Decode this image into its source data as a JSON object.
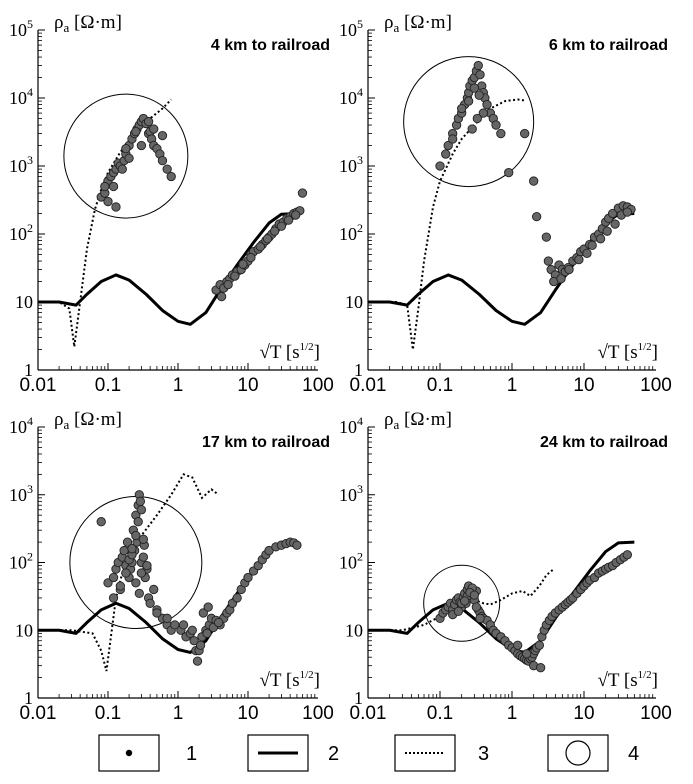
{
  "legend": {
    "items": [
      {
        "label": "1",
        "symbol": "point"
      },
      {
        "label": "2",
        "symbol": "solid-line"
      },
      {
        "label": "3",
        "symbol": "dotted-line"
      },
      {
        "label": "4",
        "symbol": "circle"
      }
    ]
  },
  "chart_data": [
    {
      "type": "scatter",
      "title": "4 km to railroad",
      "ylabel": "ρa [Ω·m]",
      "xlabel": "√T [s1/2]",
      "x_scale": "log",
      "y_scale": "log",
      "xlim": [
        0.01,
        100
      ],
      "ylim": [
        1,
        100000
      ],
      "x_ticks": [
        "0.01",
        "0.1",
        "1",
        "10",
        "100"
      ],
      "y_ticks": [
        {
          "base": "1",
          "exp": ""
        },
        {
          "base": "10",
          "exp": ""
        },
        {
          "base": "10",
          "exp": "2"
        },
        {
          "base": "10",
          "exp": "3"
        },
        {
          "base": "10",
          "exp": "4"
        },
        {
          "base": "10",
          "exp": "5"
        }
      ],
      "model_curve": {
        "x": [
          0.01,
          0.02,
          0.035,
          0.05,
          0.08,
          0.13,
          0.2,
          0.35,
          0.6,
          1.0,
          1.5,
          2.5,
          4,
          7,
          12,
          20,
          30,
          50
        ],
        "y": [
          10,
          10,
          9,
          13,
          20,
          25,
          21,
          13,
          7.5,
          5.2,
          4.7,
          7,
          15,
          35,
          75,
          145,
          195,
          200
        ]
      },
      "railway_curve": {
        "x": [
          0.01,
          0.02,
          0.028,
          0.033,
          0.04,
          0.05,
          0.065,
          0.08,
          0.1,
          0.15,
          0.25,
          0.4,
          0.6,
          0.8
        ],
        "y": [
          10,
          10,
          8,
          2.2,
          10,
          60,
          230,
          450,
          800,
          1600,
          3000,
          5000,
          7000,
          9500
        ]
      },
      "zone": {
        "cx": 0.18,
        "cy": 1400,
        "r_px": 62
      },
      "points": {
        "x": [
          0.08,
          0.09,
          0.1,
          0.11,
          0.12,
          0.12,
          0.13,
          0.14,
          0.15,
          0.16,
          0.17,
          0.18,
          0.2,
          0.22,
          0.24,
          0.26,
          0.28,
          0.3,
          0.32,
          0.35,
          0.38,
          0.4,
          0.42,
          0.45,
          0.5,
          0.55,
          0.6,
          0.7,
          0.8,
          0.1,
          0.13,
          0.2,
          0.3,
          0.45,
          0.6,
          0.09,
          0.18,
          0.25,
          0.38,
          3.5,
          4,
          4.5,
          5,
          5.5,
          6,
          7,
          8,
          9,
          10,
          11,
          12,
          14,
          16,
          18,
          20,
          22,
          25,
          28,
          32,
          36,
          40,
          45,
          50,
          55,
          60,
          4.2,
          5.2,
          6.5,
          8.5,
          11,
          15,
          19,
          24,
          30,
          38,
          48
        ],
        "y": [
          350,
          400,
          600,
          700,
          500,
          800,
          900,
          1100,
          1000,
          900,
          1200,
          1500,
          2000,
          2500,
          3000,
          3500,
          4000,
          4500,
          5000,
          4200,
          3000,
          3200,
          2500,
          2000,
          1800,
          1500,
          1200,
          900,
          700,
          300,
          250,
          1300,
          2000,
          3500,
          2800,
          500,
          1800,
          3200,
          4500,
          15,
          18,
          16,
          20,
          22,
          25,
          28,
          30,
          35,
          40,
          50,
          55,
          60,
          70,
          80,
          90,
          100,
          120,
          140,
          150,
          170,
          180,
          200,
          210,
          220,
          400,
          12,
          18,
          24,
          36,
          45,
          65,
          85,
          110,
          130,
          160,
          190
        ]
      }
    },
    {
      "type": "scatter",
      "title": "6 km to railroad",
      "ylabel": "ρa [Ω·m]",
      "xlabel": "√T [s1/2]",
      "x_scale": "log",
      "y_scale": "log",
      "xlim": [
        0.01,
        100
      ],
      "ylim": [
        1,
        100000
      ],
      "x_ticks": [
        "0.01",
        "0.1",
        "1",
        "10",
        "100"
      ],
      "y_ticks": [
        {
          "base": "1",
          "exp": ""
        },
        {
          "base": "10",
          "exp": ""
        },
        {
          "base": "10",
          "exp": "2"
        },
        {
          "base": "10",
          "exp": "3"
        },
        {
          "base": "10",
          "exp": "4"
        },
        {
          "base": "10",
          "exp": "5"
        }
      ],
      "model_curve": {
        "x": [
          0.01,
          0.02,
          0.035,
          0.05,
          0.08,
          0.13,
          0.2,
          0.35,
          0.6,
          1.0,
          1.5,
          2.5,
          4,
          7,
          12,
          20,
          30,
          50
        ],
        "y": [
          10,
          10,
          9,
          13,
          20,
          25,
          21,
          13,
          7.5,
          5.2,
          4.7,
          7,
          15,
          35,
          75,
          145,
          195,
          200
        ]
      },
      "railway_curve": {
        "x": [
          0.01,
          0.025,
          0.035,
          0.042,
          0.05,
          0.06,
          0.08,
          0.1,
          0.15,
          0.2,
          0.3,
          0.5,
          0.8,
          1.2,
          1.5
        ],
        "y": [
          10,
          10,
          9,
          2,
          8,
          40,
          250,
          600,
          1500,
          2500,
          4000,
          7000,
          9000,
          9500,
          9200
        ]
      },
      "zone": {
        "cx": 0.25,
        "cy": 4500,
        "r_px": 65
      },
      "points": {
        "x": [
          0.1,
          0.12,
          0.13,
          0.15,
          0.17,
          0.18,
          0.2,
          0.22,
          0.24,
          0.25,
          0.26,
          0.28,
          0.3,
          0.32,
          0.34,
          0.36,
          0.38,
          0.4,
          0.42,
          0.45,
          0.5,
          0.55,
          0.6,
          0.7,
          0.9,
          0.15,
          0.2,
          0.25,
          0.3,
          0.35,
          0.4,
          0.28,
          0.33,
          1.5,
          2,
          2.2,
          3,
          3.2,
          3.5,
          4,
          4.5,
          5,
          5.5,
          6,
          7,
          8,
          9,
          10,
          12,
          14,
          16,
          18,
          20,
          22,
          25,
          30,
          35,
          40,
          45,
          3.8,
          4.8,
          6.2,
          8.5,
          11,
          13,
          17,
          21,
          27,
          33,
          40
        ],
        "y": [
          1000,
          1500,
          2000,
          3000,
          4000,
          5000,
          6000,
          8000,
          10000,
          12000,
          15000,
          18000,
          20000,
          25000,
          30000,
          22000,
          15000,
          12000,
          10000,
          8000,
          6000,
          5000,
          4000,
          3000,
          800,
          2500,
          7000,
          9000,
          14000,
          11000,
          6000,
          3500,
          5000,
          3000,
          600,
          180,
          90,
          40,
          30,
          25,
          35,
          30,
          28,
          32,
          40,
          45,
          55,
          60,
          70,
          90,
          100,
          120,
          150,
          170,
          200,
          240,
          260,
          250,
          230,
          20,
          22,
          30,
          42,
          52,
          68,
          85,
          110,
          140,
          190,
          210
        ]
      }
    },
    {
      "type": "scatter",
      "title": "17 km to railroad",
      "ylabel": "ρa [Ω·m]",
      "xlabel": "√T [s1/2]",
      "x_scale": "log",
      "y_scale": "log",
      "xlim": [
        0.01,
        100
      ],
      "ylim": [
        1,
        10000
      ],
      "x_ticks": [
        "0.01",
        "0.1",
        "1",
        "10",
        "100"
      ],
      "y_ticks": [
        {
          "base": "1",
          "exp": ""
        },
        {
          "base": "10",
          "exp": ""
        },
        {
          "base": "10",
          "exp": "2"
        },
        {
          "base": "10",
          "exp": "3"
        },
        {
          "base": "10",
          "exp": "4"
        }
      ],
      "model_curve": {
        "x": [
          0.01,
          0.02,
          0.035,
          0.05,
          0.08,
          0.13,
          0.2,
          0.35,
          0.6,
          1.0,
          1.5,
          2.5,
          4,
          7,
          12,
          20,
          30,
          50
        ],
        "y": [
          10,
          10,
          9,
          13,
          20,
          25,
          21,
          13,
          7.5,
          5.2,
          4.7,
          7,
          15,
          35,
          75,
          145,
          195,
          200
        ]
      },
      "railway_curve": {
        "x": [
          0.01,
          0.03,
          0.06,
          0.08,
          0.095,
          0.11,
          0.13,
          0.16,
          0.2,
          0.3,
          0.5,
          0.8,
          1.2,
          1.6,
          2.2,
          3,
          3.8
        ],
        "y": [
          10,
          10,
          9,
          5,
          2.5,
          8,
          30,
          70,
          120,
          250,
          500,
          1000,
          2000,
          1800,
          900,
          1200,
          1000
        ]
      },
      "zone": {
        "cx": 0.25,
        "cy": 100,
        "r_px": 66
      },
      "points": {
        "x": [
          0.08,
          0.1,
          0.12,
          0.13,
          0.14,
          0.15,
          0.16,
          0.17,
          0.18,
          0.19,
          0.2,
          0.21,
          0.22,
          0.23,
          0.24,
          0.25,
          0.26,
          0.27,
          0.28,
          0.29,
          0.3,
          0.32,
          0.34,
          0.36,
          0.38,
          0.4,
          0.45,
          0.5,
          0.6,
          0.7,
          0.8,
          0.12,
          0.15,
          0.18,
          0.2,
          0.22,
          0.25,
          0.27,
          0.3,
          0.33,
          0.36,
          0.25,
          0.28,
          0.3,
          0.22,
          0.32,
          0.5,
          0.7,
          0.9,
          1.1,
          1.3,
          1.5,
          1.7,
          1.8,
          1.9,
          2,
          2.2,
          2.5,
          2.8,
          3,
          3.5,
          4,
          4.5,
          5,
          5.5,
          6,
          7,
          8,
          9,
          10,
          12,
          14,
          16,
          18,
          20,
          25,
          30,
          35,
          40,
          45,
          50,
          1.2,
          1.6,
          2.1,
          2.6,
          3.2,
          3.8,
          2.3,
          2.7
        ],
        "y": [
          400,
          50,
          60,
          80,
          100,
          40,
          120,
          150,
          90,
          200,
          60,
          80,
          100,
          300,
          150,
          500,
          200,
          700,
          1000,
          800,
          100,
          120,
          60,
          80,
          30,
          25,
          40,
          20,
          15,
          12,
          10,
          30,
          45,
          70,
          110,
          130,
          250,
          400,
          600,
          180,
          90,
          50,
          35,
          70,
          160,
          220,
          18,
          15,
          12,
          10,
          8,
          9,
          7,
          5,
          3.5,
          5,
          8,
          10,
          12,
          15,
          14,
          12,
          15,
          18,
          20,
          25,
          30,
          40,
          50,
          60,
          75,
          90,
          110,
          130,
          150,
          170,
          180,
          190,
          200,
          195,
          180,
          12,
          10,
          6,
          9,
          11,
          13,
          18,
          22
        ]
      }
    },
    {
      "type": "scatter",
      "title": "24 km to railroad",
      "ylabel": "ρa [Ω·m]",
      "xlabel": "√T [s1/2]",
      "x_scale": "log",
      "y_scale": "log",
      "xlim": [
        0.01,
        100
      ],
      "ylim": [
        1,
        10000
      ],
      "x_ticks": [
        "0.01",
        "0.1",
        "1",
        "10",
        "100"
      ],
      "y_ticks": [
        {
          "base": "1",
          "exp": ""
        },
        {
          "base": "10",
          "exp": ""
        },
        {
          "base": "10",
          "exp": "2"
        },
        {
          "base": "10",
          "exp": "3"
        },
        {
          "base": "10",
          "exp": "4"
        }
      ],
      "model_curve": {
        "x": [
          0.01,
          0.02,
          0.035,
          0.05,
          0.08,
          0.13,
          0.2,
          0.35,
          0.6,
          1.0,
          1.5,
          2.5,
          4,
          7,
          12,
          20,
          30,
          50
        ],
        "y": [
          10,
          10,
          9,
          13,
          20,
          25,
          21,
          13,
          7.5,
          5.2,
          4.7,
          7,
          15,
          35,
          75,
          145,
          195,
          200
        ]
      },
      "railway_curve": {
        "x": [
          0.01,
          0.03,
          0.06,
          0.1,
          0.15,
          0.2,
          0.3,
          0.4,
          0.5,
          0.7,
          1.0,
          1.4,
          1.8,
          2.4,
          3,
          3.8
        ],
        "y": [
          10,
          10,
          12,
          16,
          20,
          25,
          28,
          25,
          24,
          28,
          35,
          38,
          32,
          45,
          65,
          80
        ]
      },
      "zone": {
        "cx": 0.2,
        "cy": 25,
        "r_px": 38
      },
      "points": {
        "x": [
          0.1,
          0.11,
          0.12,
          0.13,
          0.14,
          0.15,
          0.16,
          0.17,
          0.18,
          0.19,
          0.2,
          0.21,
          0.22,
          0.23,
          0.24,
          0.25,
          0.26,
          0.28,
          0.3,
          0.32,
          0.34,
          0.36,
          0.38,
          0.4,
          0.45,
          0.5,
          0.55,
          0.6,
          0.7,
          0.8,
          0.9,
          1.0,
          1.1,
          1.2,
          1.3,
          1.4,
          1.5,
          1.6,
          1.7,
          1.8,
          1.9,
          2.0,
          2.1,
          2.2,
          2.4,
          2.6,
          2.8,
          3.0,
          3.3,
          3.6,
          4,
          4.5,
          5,
          5.5,
          6,
          6.5,
          7,
          8,
          9,
          10,
          11,
          12,
          14,
          16,
          18,
          20,
          22,
          25,
          28,
          32,
          36,
          40,
          0.15,
          0.2,
          0.24,
          0.28,
          0.32,
          0.36,
          0.18,
          0.22,
          0.26,
          0.3,
          1.2,
          1.6,
          2.0,
          2.5
        ],
        "y": [
          15,
          18,
          20,
          22,
          25,
          20,
          24,
          28,
          30,
          26,
          22,
          30,
          35,
          25,
          40,
          45,
          30,
          35,
          28,
          38,
          20,
          18,
          16,
          15,
          14,
          12,
          10,
          9,
          8,
          7,
          6,
          5.5,
          5,
          4.5,
          4.2,
          4,
          3.8,
          3.6,
          3.5,
          3.8,
          4,
          4.5,
          5,
          5.5,
          6,
          8,
          10,
          12,
          14,
          16,
          18,
          20,
          22,
          24,
          26,
          28,
          30,
          35,
          40,
          45,
          50,
          55,
          60,
          70,
          75,
          80,
          85,
          90,
          100,
          110,
          120,
          130,
          17,
          25,
          32,
          42,
          22,
          15,
          19,
          27,
          36,
          33,
          6,
          4.5,
          3,
          2.8
        ]
      }
    }
  ]
}
